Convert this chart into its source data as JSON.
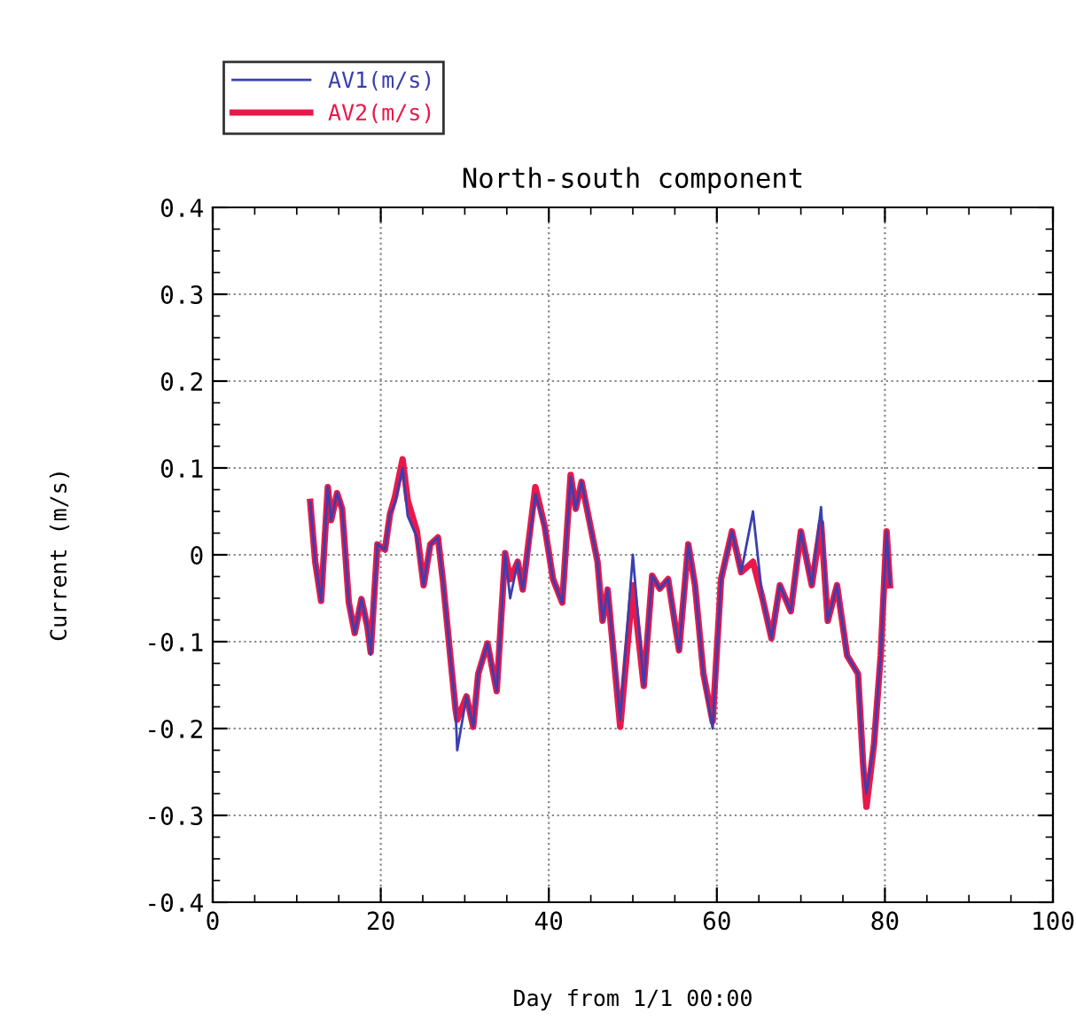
{
  "chart_data": {
    "type": "line",
    "title": "North-south component",
    "xlabel": "Day from 1/1 00:00",
    "ylabel": "Current (m/s)",
    "xlim": [
      0,
      100
    ],
    "xticks": [
      0,
      20,
      40,
      60,
      80,
      100
    ],
    "ylim": [
      -0.4,
      0.4
    ],
    "yticks": [
      {
        "value": -0.4,
        "label": "-0.4"
      },
      {
        "value": -0.3,
        "label": "-0.3"
      },
      {
        "value": -0.2,
        "label": "-0.2"
      },
      {
        "value": -0.1,
        "label": "-0.1"
      },
      {
        "value": 0,
        "label": "0"
      },
      {
        "value": 0.1,
        "label": "0.1"
      },
      {
        "value": 0.2,
        "label": "0.2"
      },
      {
        "value": 0.3,
        "label": "0.3"
      },
      {
        "value": 0.4,
        "label": "0.4"
      }
    ],
    "grid": true,
    "legend": "top left",
    "marker": "none",
    "line_style": "solid",
    "x": [
      11.6,
      12.2,
      12.9,
      13.7,
      14.1,
      14.8,
      15.4,
      16.2,
      16.9,
      17.7,
      18.4,
      18.8,
      19.6,
      20.5,
      21.1,
      21.7,
      22.6,
      23.2,
      24.3,
      25.1,
      25.9,
      26.8,
      27.4,
      28.9,
      29.1,
      30.2,
      31.0,
      31.6,
      32.7,
      33.8,
      34.8,
      35.4,
      36.3,
      36.9,
      38.4,
      39.5,
      40.5,
      41.6,
      42.6,
      43.2,
      43.9,
      45.8,
      46.4,
      47.0,
      48.5,
      50.0,
      51.3,
      52.3,
      53.2,
      54.2,
      55.5,
      56.6,
      57.4,
      58.4,
      59.5,
      60.5,
      61.8,
      62.9,
      64.3,
      65.4,
      66.5,
      67.5,
      68.8,
      70.0,
      71.3,
      72.4,
      73.2,
      74.3,
      75.5,
      76.8,
      77.4,
      77.8,
      78.7,
      79.5,
      80.2,
      80.6
    ],
    "series": [
      {
        "name": "AV1(m/s)",
        "color": "#3a3fb0",
        "values": [
          0.061,
          -0.008,
          -0.053,
          0.078,
          0.04,
          0.071,
          0.053,
          -0.055,
          -0.09,
          -0.051,
          -0.082,
          -0.115,
          0.012,
          0.006,
          0.047,
          0.06,
          0.1,
          0.045,
          0.02,
          -0.035,
          0.012,
          0.02,
          -0.03,
          -0.178,
          -0.225,
          -0.163,
          -0.198,
          -0.137,
          -0.102,
          -0.157,
          0.002,
          -0.05,
          -0.008,
          -0.04,
          0.07,
          0.033,
          -0.028,
          -0.055,
          0.09,
          0.053,
          0.084,
          -0.008,
          -0.076,
          -0.04,
          -0.19,
          0.0,
          -0.151,
          -0.024,
          -0.039,
          -0.028,
          -0.11,
          0.012,
          -0.035,
          -0.137,
          -0.2,
          -0.028,
          0.027,
          -0.02,
          0.05,
          -0.049,
          -0.096,
          -0.035,
          -0.065,
          0.027,
          -0.035,
          0.055,
          -0.076,
          -0.035,
          -0.116,
          -0.137,
          -0.24,
          -0.275,
          -0.218,
          -0.116,
          0.027,
          -0.035
        ]
      },
      {
        "name": "AV2(m/s)",
        "color": "#e8194a",
        "values": [
          0.061,
          -0.008,
          -0.053,
          0.078,
          0.04,
          0.071,
          0.053,
          -0.055,
          -0.09,
          -0.051,
          -0.082,
          -0.112,
          0.012,
          0.006,
          0.047,
          0.067,
          0.11,
          0.063,
          0.027,
          -0.035,
          0.012,
          0.02,
          -0.03,
          -0.178,
          -0.19,
          -0.163,
          -0.198,
          -0.137,
          -0.102,
          -0.157,
          0.002,
          -0.028,
          -0.008,
          -0.04,
          0.078,
          0.033,
          -0.028,
          -0.055,
          0.092,
          0.053,
          0.084,
          -0.008,
          -0.076,
          -0.04,
          -0.198,
          -0.035,
          -0.151,
          -0.024,
          -0.039,
          -0.028,
          -0.11,
          0.012,
          -0.035,
          -0.137,
          -0.192,
          -0.028,
          0.027,
          -0.02,
          -0.008,
          -0.049,
          -0.096,
          -0.035,
          -0.065,
          0.027,
          -0.035,
          0.037,
          -0.076,
          -0.035,
          -0.116,
          -0.137,
          -0.24,
          -0.29,
          -0.218,
          -0.116,
          0.027,
          -0.035
        ]
      }
    ]
  }
}
